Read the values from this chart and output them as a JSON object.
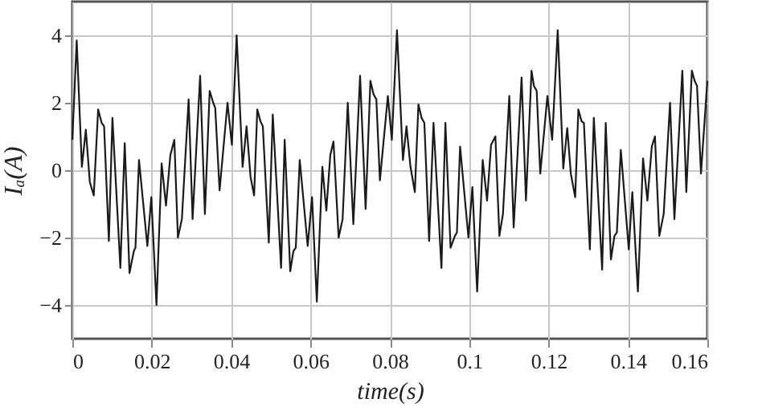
{
  "chart_data": {
    "type": "line",
    "xlabel": "time(s)",
    "ylabel": "Iₐ(A)",
    "xlim": [
      0,
      0.16
    ],
    "ylim": [
      -5,
      5
    ],
    "xticks": [
      0,
      0.02,
      0.04,
      0.06,
      0.08,
      0.1,
      0.12,
      0.14,
      0.16
    ],
    "yticks": [
      -4,
      -2,
      0,
      2,
      4
    ],
    "grid": true,
    "marker": "none",
    "line_style": "solid",
    "series": [
      {
        "color": "#1a1a1a",
        "x": [
          0,
          0.0011,
          0.0024,
          0.0034,
          0.0044,
          0.0054,
          0.0065,
          0.0074,
          0.008,
          0.0092,
          0.0101,
          0.0121,
          0.0132,
          0.0144,
          0.0155,
          0.0159,
          0.0168,
          0.0189,
          0.0199,
          0.0212,
          0.0225,
          0.0236,
          0.0247,
          0.0257,
          0.0266,
          0.0276,
          0.0293,
          0.0303,
          0.0322,
          0.0334,
          0.0346,
          0.0355,
          0.036,
          0.0371,
          0.0391,
          0.0402,
          0.0414,
          0.0429,
          0.0439,
          0.0449,
          0.0458,
          0.0466,
          0.0474,
          0.048,
          0.0495,
          0.0505,
          0.0526,
          0.0535,
          0.0549,
          0.0557,
          0.0563,
          0.0573,
          0.0593,
          0.0604,
          0.0616,
          0.063,
          0.064,
          0.065,
          0.0658,
          0.0671,
          0.0681,
          0.0694,
          0.0708,
          0.0725,
          0.0739,
          0.0751,
          0.0759,
          0.0766,
          0.0775,
          0.0795,
          0.0805,
          0.0818,
          0.0833,
          0.0842,
          0.0852,
          0.0863,
          0.0872,
          0.088,
          0.0887,
          0.0899,
          0.091,
          0.093,
          0.094,
          0.0953,
          0.0964,
          0.0969,
          0.0977,
          0.0998,
          0.1008,
          0.102,
          0.1034,
          0.1045,
          0.1055,
          0.1066,
          0.1076,
          0.1085,
          0.1101,
          0.1112,
          0.1132,
          0.1143,
          0.1157,
          0.1163,
          0.117,
          0.1179,
          0.1197,
          0.1209,
          0.1223,
          0.1237,
          0.1247,
          0.1256,
          0.1267,
          0.1275,
          0.1283,
          0.1289,
          0.1304,
          0.1314,
          0.1335,
          0.1344,
          0.1357,
          0.1366,
          0.1372,
          0.1382,
          0.1402,
          0.1411,
          0.1425,
          0.1438,
          0.1449,
          0.146,
          0.1468,
          0.1479,
          0.149,
          0.1506,
          0.1517,
          0.1537,
          0.1547,
          0.1561,
          0.1568,
          0.1574,
          0.1584,
          0.16
        ],
        "values": [
          0.9,
          3.85,
          0.1,
          1.2,
          -0.35,
          -0.75,
          1.8,
          1.4,
          1.3,
          -2.1,
          1.55,
          -2.9,
          0.8,
          -3.05,
          -2.4,
          -2.3,
          0.3,
          -2.25,
          -0.8,
          -4,
          0.2,
          -1.05,
          0.45,
          0.9,
          -2,
          -1.45,
          2.1,
          -1.45,
          2.8,
          -1.3,
          2.35,
          2.0,
          1.85,
          -0.6,
          2.0,
          0.75,
          4.0,
          0.1,
          1.3,
          -0.2,
          -0.75,
          1.8,
          1.45,
          1.3,
          -2.15,
          1.65,
          -2.9,
          0.9,
          -3,
          -2.4,
          -2.3,
          0.3,
          -2.25,
          -0.8,
          -3.9,
          0.1,
          -1.2,
          0.45,
          0.85,
          -2,
          -1.45,
          2.0,
          -1.6,
          2.8,
          -1.15,
          2.65,
          2.25,
          2.1,
          -0.3,
          2.2,
          0.9,
          4.15,
          0.3,
          1.3,
          0.1,
          -0.65,
          1.95,
          1.55,
          1.4,
          -2.1,
          1.4,
          -2.9,
          1.4,
          -2.3,
          -1.95,
          -1.85,
          0.7,
          -2,
          -0.5,
          -3.6,
          0.3,
          -0.9,
          0.75,
          1.0,
          -1.95,
          -1.3,
          2.2,
          -1.7,
          2.75,
          -0.9,
          2.95,
          2.5,
          2.35,
          -0.1,
          2.2,
          0.9,
          4.15,
          0.05,
          1.25,
          -0.1,
          -0.8,
          1.8,
          1.45,
          1.4,
          -2.35,
          1.55,
          -2.95,
          1.4,
          -2.65,
          -1.95,
          -1.85,
          0.6,
          -2.35,
          -0.65,
          -3.6,
          0.35,
          -0.9,
          0.7,
          1.0,
          -1.95,
          -1.3,
          2.0,
          -1.45,
          2.95,
          -0.65,
          2.95,
          2.65,
          2.5,
          -0.1,
          2.65
        ]
      }
    ]
  }
}
